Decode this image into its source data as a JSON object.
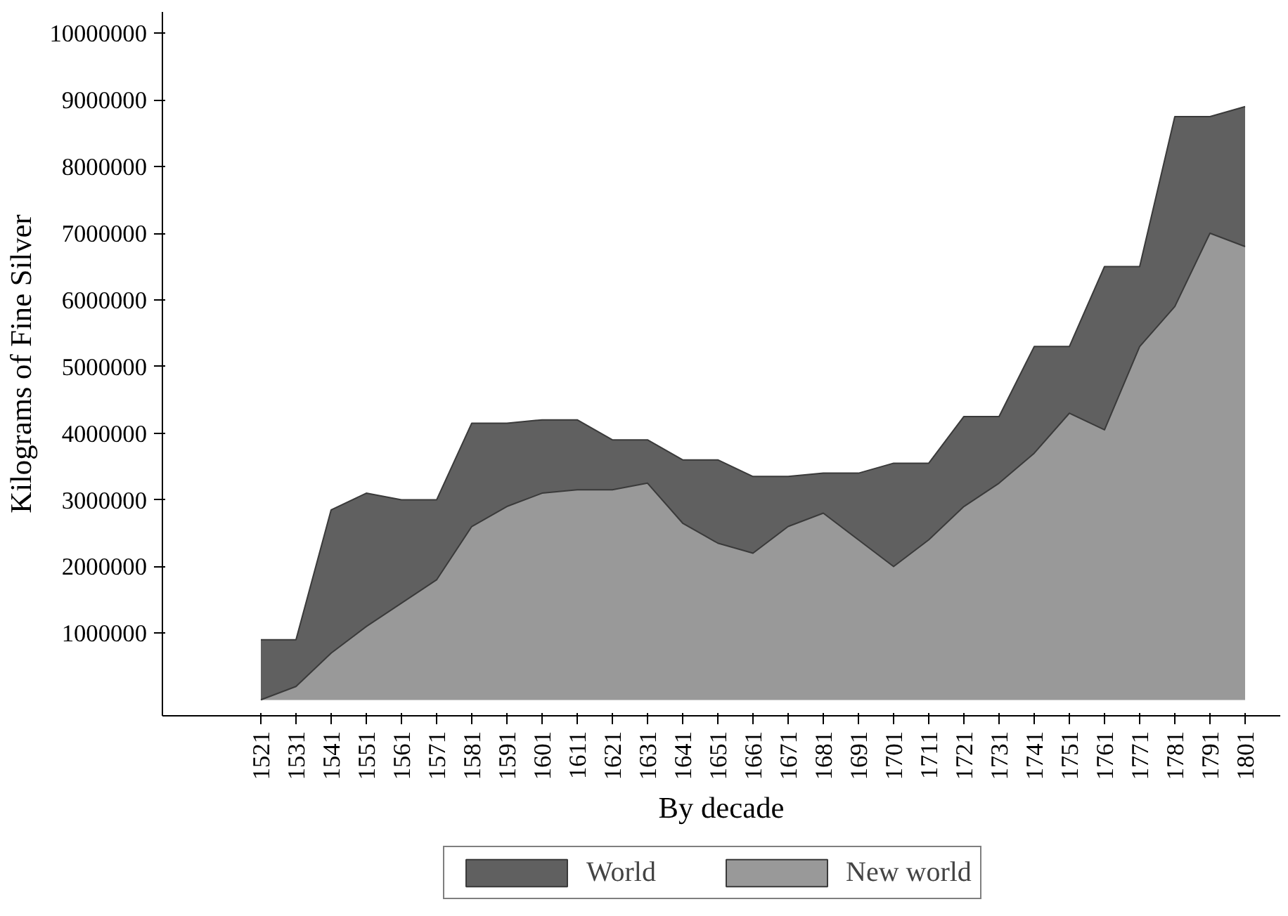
{
  "chart_data": {
    "type": "area",
    "xlabel": "By decade",
    "ylabel": "Kilograms of Fine Silver",
    "categories": [
      "1521",
      "1531",
      "1541",
      "1551",
      "1561",
      "1571",
      "1581",
      "1591",
      "1601",
      "1611",
      "1621",
      "1631",
      "1641",
      "1651",
      "1661",
      "1671",
      "1681",
      "1691",
      "1701",
      "1711",
      "1721",
      "1731",
      "1741",
      "1751",
      "1761",
      "1771",
      "1781",
      "1791",
      "1801"
    ],
    "series": [
      {
        "name": "World",
        "color": "#606060",
        "values": [
          900000,
          900000,
          2850000,
          3100000,
          3000000,
          3000000,
          4150000,
          4150000,
          4200000,
          4200000,
          3900000,
          3900000,
          3600000,
          3600000,
          3350000,
          3350000,
          3400000,
          3400000,
          3550000,
          3550000,
          4250000,
          4250000,
          5300000,
          5300000,
          6500000,
          6500000,
          8750000,
          8750000,
          8900000
        ]
      },
      {
        "name": "New world",
        "color": "#999999",
        "values": [
          0,
          200000,
          700000,
          1100000,
          1450000,
          1800000,
          2600000,
          2900000,
          3100000,
          3150000,
          3150000,
          3250000,
          2650000,
          2350000,
          2200000,
          2600000,
          2800000,
          2400000,
          2000000,
          2400000,
          2900000,
          3250000,
          3700000,
          4300000,
          4050000,
          5300000,
          5900000,
          7000000,
          6800000
        ]
      }
    ],
    "ylim": [
      -240000,
      10320000
    ],
    "yticks": [
      1000000,
      2000000,
      3000000,
      4000000,
      5000000,
      6000000,
      7000000,
      8000000,
      9000000,
      10000000
    ],
    "grid": false,
    "legend": "bottom"
  }
}
